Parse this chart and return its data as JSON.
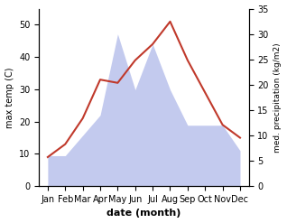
{
  "months": [
    "Jan",
    "Feb",
    "Mar",
    "Apr",
    "May",
    "Jun",
    "Jul",
    "Aug",
    "Sep",
    "Oct",
    "Nov",
    "Dec"
  ],
  "temp_values": [
    9,
    13,
    21,
    33,
    32,
    39,
    44,
    51,
    39,
    29,
    19,
    15
  ],
  "precip_values": [
    6,
    6,
    10,
    14,
    30,
    19,
    28,
    19,
    12,
    12,
    12,
    7
  ],
  "xlabel": "date (month)",
  "ylabel_left": "max temp (C)",
  "ylabel_right": "med. precipitation (kg/m2)",
  "temp_color": "#c0392b",
  "precip_color": "#aab4e8",
  "ylim_left": [
    0,
    55
  ],
  "ylim_right": [
    0,
    35
  ],
  "yticks_left": [
    0,
    10,
    20,
    30,
    40,
    50
  ],
  "yticks_right": [
    0,
    5,
    10,
    15,
    20,
    25,
    30,
    35
  ]
}
